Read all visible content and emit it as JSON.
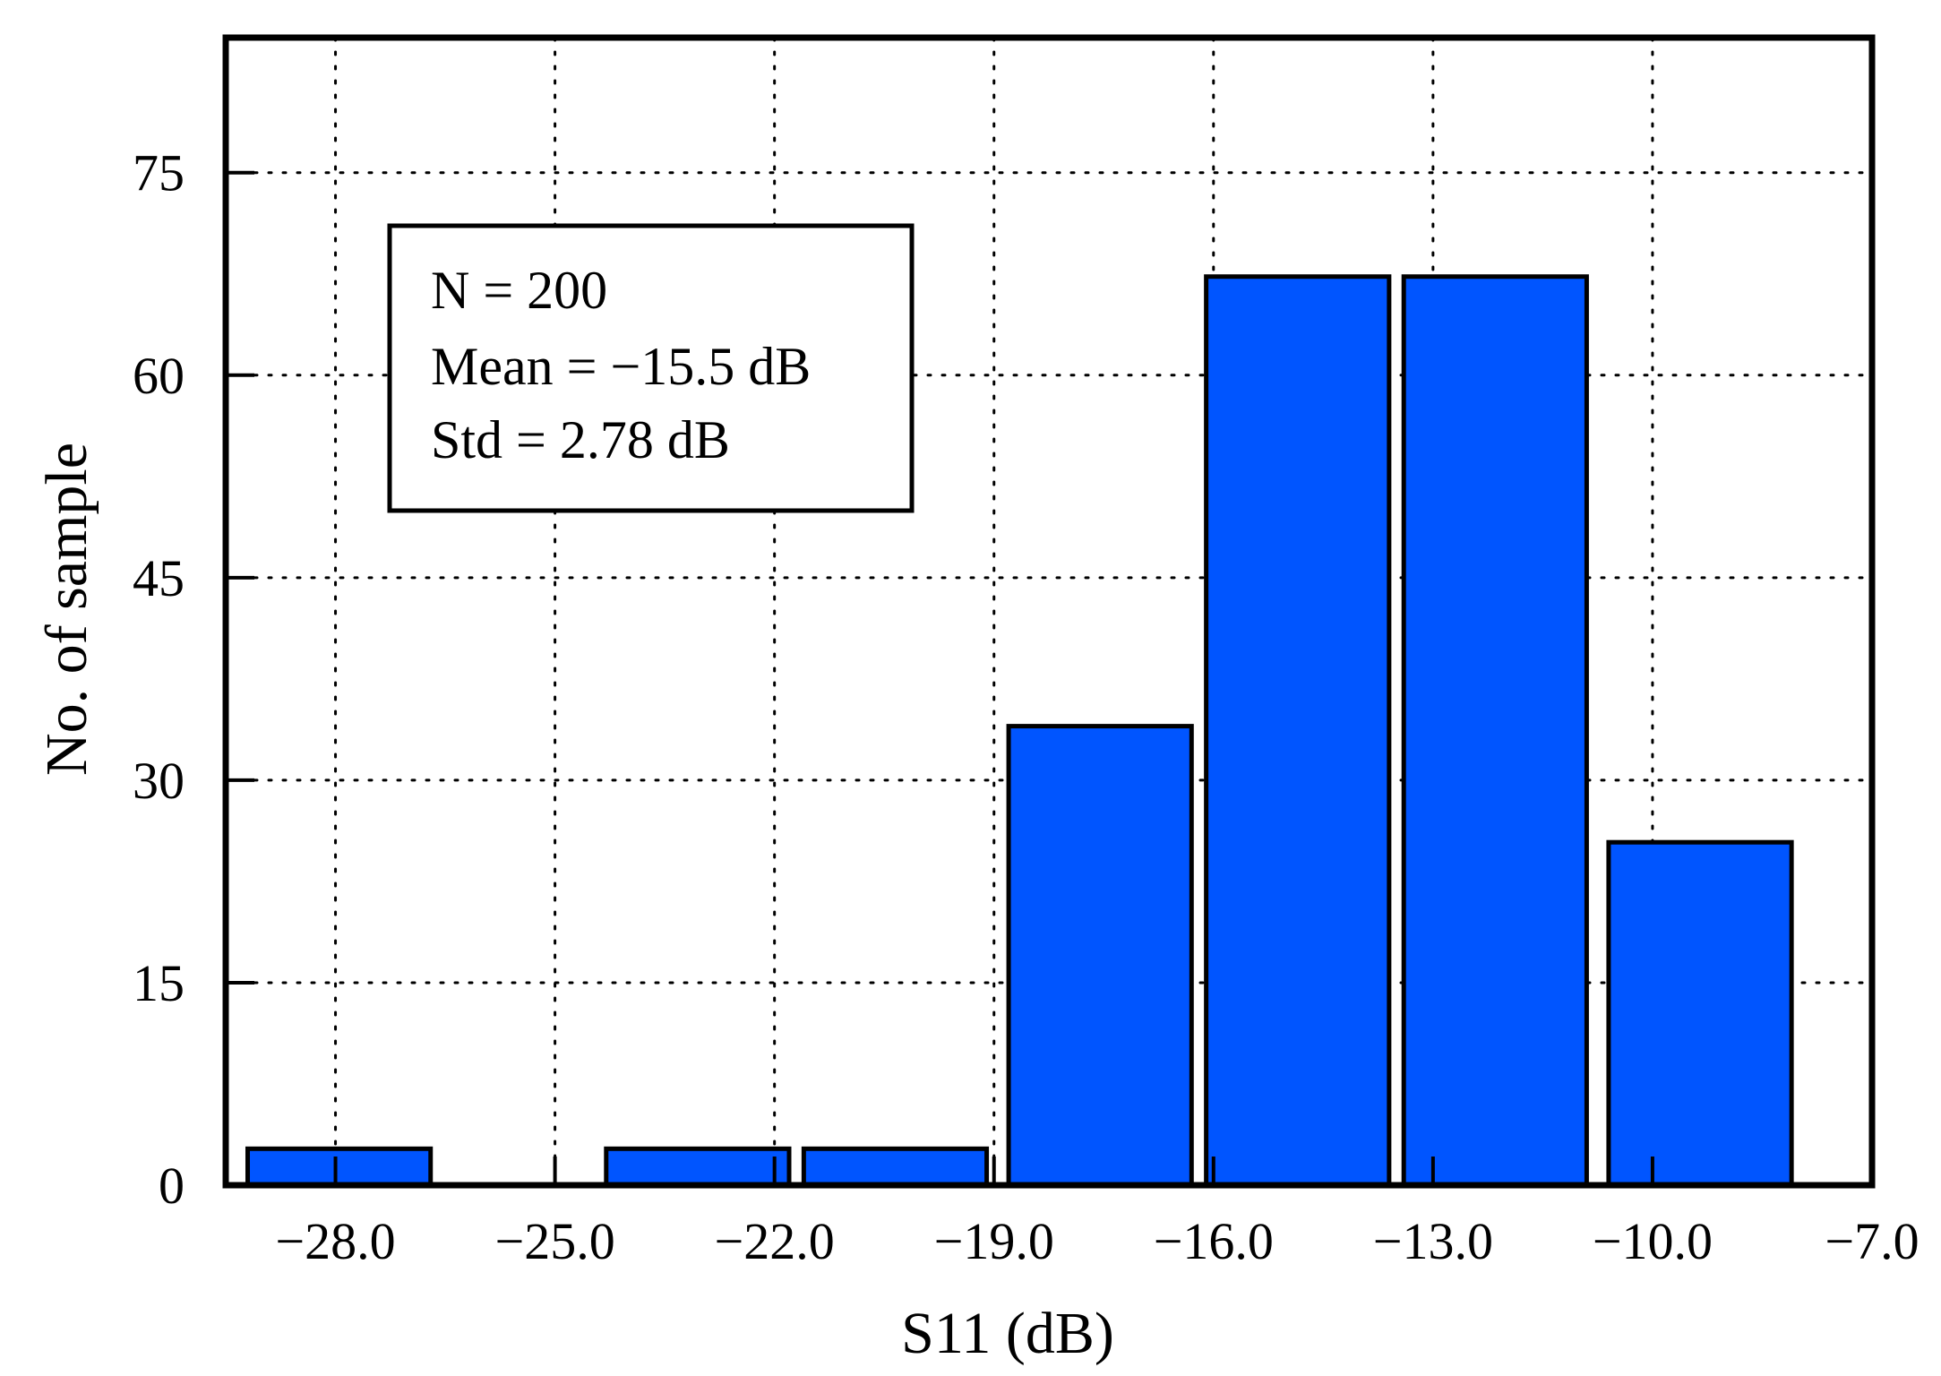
{
  "chart_data": {
    "type": "bar",
    "xlabel": "S11 (dB)",
    "ylabel": "No. of sample",
    "xlim": [
      -29.5,
      -7.0
    ],
    "ylim": [
      0,
      85
    ],
    "x_ticks": [
      -28.0,
      -25.0,
      -22.0,
      -19.0,
      -16.0,
      -13.0,
      -10.0,
      -7.0
    ],
    "x_tick_labels": [
      "−28.0",
      "−25.0",
      "−22.0",
      "−19.0",
      "−16.0",
      "−13.0",
      "−10.0",
      "−7.0"
    ],
    "y_ticks": [
      0,
      15,
      30,
      45,
      60,
      75
    ],
    "y_tick_labels": [
      "0",
      "15",
      "30",
      "45",
      "60",
      "75"
    ],
    "grid": true,
    "bar_color": "#0055ff",
    "bars": [
      {
        "x0": -29.2,
        "x1": -26.7,
        "value": 2.7
      },
      {
        "x0": -24.3,
        "x1": -21.8,
        "value": 2.7
      },
      {
        "x0": -21.6,
        "x1": -19.1,
        "value": 2.7
      },
      {
        "x0": -18.8,
        "x1": -16.3,
        "value": 34.0
      },
      {
        "x0": -16.1,
        "x1": -13.6,
        "value": 67.3
      },
      {
        "x0": -13.4,
        "x1": -10.9,
        "value": 67.3
      },
      {
        "x0": -10.6,
        "x1": -8.1,
        "value": 25.4
      }
    ],
    "annotations": [
      "N = 200",
      "Mean = −15.5 dB",
      "Std = 2.78 dB"
    ]
  }
}
